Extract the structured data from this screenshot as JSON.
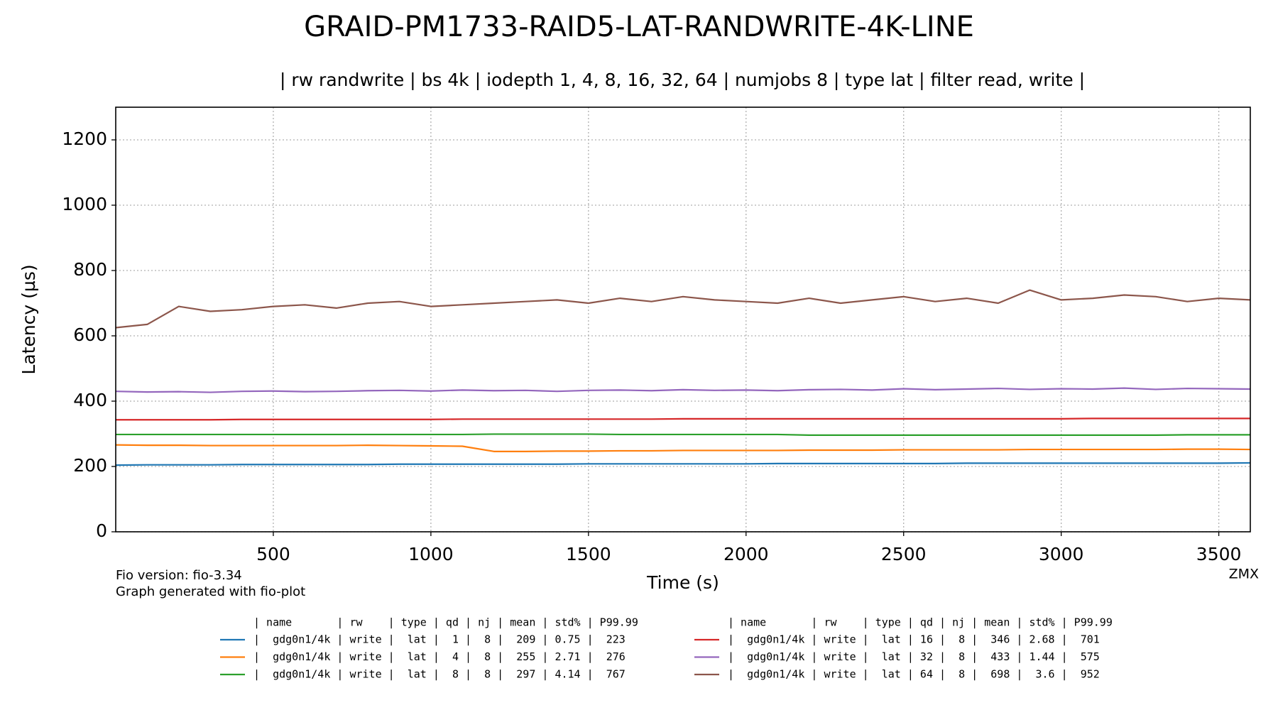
{
  "chart_data": {
    "type": "line",
    "title": "GRAID-PM1733-RAID5-LAT-RANDWRITE-4K-LINE",
    "subtitle": "| rw randwrite | bs 4k | iodepth 1, 4, 8, 16, 32, 64 | numjobs 8 | type lat | filter read, write |",
    "x_label": "Time (s)",
    "y_label": "Latency (µs)",
    "notes": [
      "Fio version: fio-3.34",
      "Graph generated with fio-plot"
    ],
    "corner_label": "ZMX",
    "legend_header": "| name       | rw    | type | qd | nj | mean | std% | P99.99",
    "x": [
      0,
      100,
      200,
      300,
      400,
      500,
      600,
      700,
      800,
      900,
      1000,
      1100,
      1200,
      1300,
      1400,
      1500,
      1600,
      1700,
      1800,
      1900,
      2000,
      2100,
      2200,
      2300,
      2400,
      2500,
      2600,
      2700,
      2800,
      2900,
      3000,
      3100,
      3200,
      3300,
      3400,
      3500,
      3600
    ],
    "series": [
      {
        "name": "|  gdg0n1/4k | write |  lat |  1 |  8 |  209 | 0.75 |  223",
        "color": "#1f77b4",
        "values": [
          204,
          205,
          205,
          205,
          206,
          206,
          206,
          206,
          206,
          207,
          207,
          207,
          207,
          207,
          207,
          208,
          208,
          208,
          208,
          208,
          208,
          209,
          209,
          209,
          209,
          209,
          209,
          210,
          210,
          210,
          210,
          210,
          210,
          210,
          210,
          210,
          211
        ]
      },
      {
        "name": "|  gdg0n1/4k | write |  lat |  4 |  8 |  255 | 2.71 |  276",
        "color": "#ff7f0e",
        "values": [
          266,
          265,
          265,
          264,
          264,
          264,
          264,
          264,
          265,
          264,
          263,
          262,
          246,
          246,
          247,
          247,
          248,
          248,
          249,
          249,
          249,
          249,
          250,
          250,
          250,
          251,
          251,
          251,
          251,
          252,
          252,
          252,
          252,
          252,
          253,
          253,
          252
        ]
      },
      {
        "name": "|  gdg0n1/4k | write |  lat |  8 |  8 |  297 | 4.14 |  767",
        "color": "#2ca02c",
        "values": [
          298,
          298,
          298,
          298,
          298,
          298,
          298,
          298,
          298,
          298,
          298,
          298,
          299,
          299,
          299,
          299,
          298,
          298,
          298,
          298,
          298,
          298,
          296,
          296,
          296,
          296,
          296,
          296,
          296,
          296,
          296,
          296,
          296,
          296,
          297,
          297,
          297
        ]
      },
      {
        "name": "|  gdg0n1/4k | write |  lat | 16 |  8 |  346 | 2.68 |  701",
        "color": "#d62728",
        "values": [
          343,
          343,
          343,
          343,
          344,
          344,
          344,
          344,
          344,
          344,
          344,
          345,
          345,
          345,
          345,
          345,
          345,
          345,
          346,
          346,
          346,
          346,
          346,
          346,
          346,
          346,
          346,
          346,
          346,
          346,
          346,
          347,
          347,
          347,
          347,
          347,
          347
        ]
      },
      {
        "name": "|  gdg0n1/4k | write |  lat | 32 |  8 |  433 | 1.44 |  575",
        "color": "#9467bd",
        "values": [
          430,
          428,
          429,
          427,
          430,
          431,
          429,
          430,
          432,
          433,
          431,
          434,
          432,
          433,
          430,
          433,
          434,
          432,
          435,
          433,
          434,
          432,
          435,
          436,
          434,
          438,
          435,
          437,
          439,
          436,
          438,
          437,
          440,
          436,
          439,
          438,
          437
        ]
      },
      {
        "name": "|  gdg0n1/4k | write |  lat | 64 |  8 |  698 |  3.6 |  952",
        "color": "#8c564b",
        "values": [
          625,
          635,
          690,
          675,
          680,
          690,
          695,
          685,
          700,
          705,
          690,
          695,
          700,
          705,
          710,
          700,
          715,
          705,
          720,
          710,
          705,
          700,
          715,
          700,
          710,
          720,
          705,
          715,
          700,
          740,
          710,
          715,
          725,
          720,
          705,
          715,
          710
        ]
      }
    ],
    "xlim": [
      0,
      3600
    ],
    "xticks": [
      500,
      1000,
      1500,
      2000,
      2500,
      3000,
      3500
    ],
    "ylim": [
      0,
      1300
    ],
    "yticks": [
      0,
      200,
      400,
      600,
      800,
      1000,
      1200
    ],
    "grid": true
  }
}
